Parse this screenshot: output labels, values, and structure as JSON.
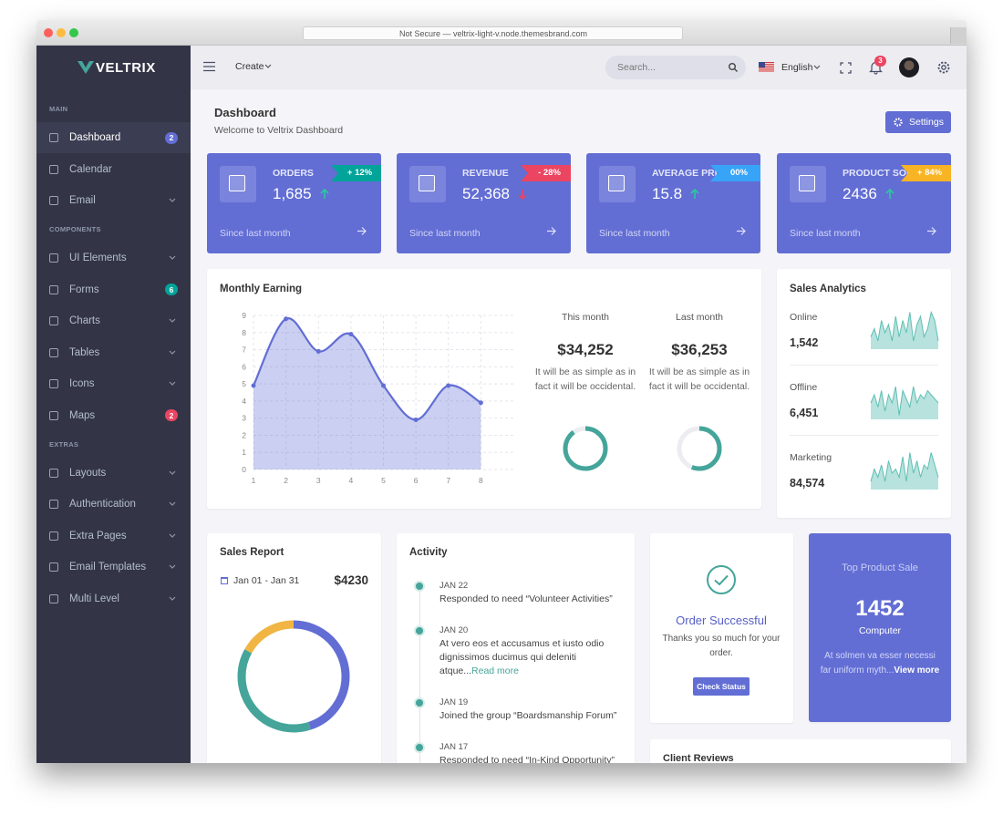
{
  "browser": {
    "url": "Not Secure — veltrix-light-v.node.themesbrand.com"
  },
  "sidebar": {
    "brand": "VELTRIX",
    "sections": [
      {
        "title": "MAIN",
        "items": [
          {
            "label": "Dashboard",
            "badge": 2,
            "badge_color": "#626ed4",
            "active": true
          },
          {
            "label": "Calendar"
          },
          {
            "label": "Email",
            "submenu": true
          }
        ]
      },
      {
        "title": "COMPONENTS",
        "items": [
          {
            "label": "UI Elements",
            "submenu": true
          },
          {
            "label": "Forms",
            "badge": 6,
            "badge_color": "#02a499"
          },
          {
            "label": "Charts",
            "submenu": true
          },
          {
            "label": "Tables",
            "submenu": true
          },
          {
            "label": "Icons",
            "submenu": true
          },
          {
            "label": "Maps",
            "badge": 2,
            "badge_color": "#ec4561"
          }
        ]
      },
      {
        "title": "EXTRAS",
        "items": [
          {
            "label": "Layouts",
            "submenu": true
          },
          {
            "label": "Authentication",
            "submenu": true
          },
          {
            "label": "Extra Pages",
            "submenu": true
          },
          {
            "label": "Email Templates",
            "submenu": true
          },
          {
            "label": "Multi Level",
            "submenu": true
          }
        ]
      }
    ]
  },
  "topbar": {
    "create": "Create",
    "search_placeholder": "Search...",
    "language": "English",
    "notifications": 3
  },
  "page_header": {
    "title": "Dashboard",
    "subtitle": "Welcome to Veltrix Dashboard",
    "button": "Settings"
  },
  "stats": [
    {
      "title": "ORDERS",
      "value": "1,685",
      "change": "+ 12%",
      "change_color": "#02a499",
      "trend": "up",
      "footer": "Since last month"
    },
    {
      "title": "REVENUE",
      "value": "52,368",
      "change": "- 28%",
      "change_color": "#ec4561",
      "trend": "down",
      "footer": "Since last month"
    },
    {
      "title": "AVERAGE PRICE",
      "value": 15.8,
      "change": "00%",
      "change_color": "#38a4f8",
      "trend": "up",
      "footer": "Since last month"
    },
    {
      "title": "PRODUCT SOLD",
      "value": 2436,
      "change": "+ 84%",
      "change_color": "#f8b425",
      "trend": "up",
      "footer": "Since last month"
    }
  ],
  "monthly_earning": {
    "title": "Monthly Earning",
    "chart": {
      "type": "area",
      "x": [
        1,
        2,
        3,
        4,
        5,
        6,
        7,
        8
      ],
      "values": [
        4.9,
        8.8,
        6.9,
        7.9,
        4.9,
        2.9,
        4.9,
        3.9
      ],
      "xlim": [
        1,
        9
      ],
      "xticks": [
        1,
        2,
        3,
        4,
        5,
        6,
        7,
        8
      ],
      "ylim": [
        0,
        9
      ],
      "yticks": [
        0,
        1,
        2,
        3,
        4,
        5,
        6,
        7,
        8,
        9
      ],
      "color": "#626ed4",
      "grid": true
    },
    "periods": [
      {
        "label": "This month",
        "amount": "$34,252",
        "text": "It will be as simple as in fact it will be occidental.",
        "progress": 90,
        "color": "#45a59a"
      },
      {
        "label": "Last month",
        "amount": "$36,253",
        "text": "It will be as simple as in fact it will be occidental.",
        "progress": 56,
        "color": "#45a59a"
      }
    ]
  },
  "sales_analytics": {
    "title": "Sales Analytics",
    "ylim": [
      0,
      10
    ],
    "color": "#5fbfb3",
    "items": [
      {
        "label": "Online",
        "value": "1,542",
        "sparkline": [
          3,
          5,
          2,
          7,
          4,
          6,
          2,
          8,
          3,
          7,
          4,
          9,
          2,
          6,
          8,
          3,
          5,
          9,
          7,
          2
        ]
      },
      {
        "label": "Offline",
        "value": "6,451",
        "sparkline": [
          4,
          6,
          3,
          7,
          2,
          6,
          4,
          8,
          1,
          7,
          5,
          3,
          8,
          4,
          6,
          5,
          7,
          6,
          5,
          4
        ]
      },
      {
        "label": "Marketing",
        "value": "84,574",
        "sparkline": [
          2,
          5,
          3,
          6,
          2,
          7,
          4,
          5,
          3,
          8,
          2,
          9,
          4,
          7,
          3,
          6,
          5,
          9,
          6,
          3
        ]
      }
    ]
  },
  "sales_report": {
    "title": "Sales Report",
    "range": "Jan 01 - Jan 31",
    "total": "$4230",
    "donut": {
      "type": "donut",
      "values": [
        45,
        38,
        17
      ],
      "colors": [
        "#626ed4",
        "#45a59a",
        "#f0b542"
      ]
    }
  },
  "activity": {
    "title": "Activity",
    "items": [
      {
        "date": "JAN 22",
        "text": "Responded to need “Volunteer Activities”"
      },
      {
        "date": "JAN 20",
        "text": "At vero eos et accusamus et iusto odio dignissimos ducimus qui deleniti atque...",
        "link": "Read more"
      },
      {
        "date": "JAN 19",
        "text": "Joined the group “Boardsmanship Forum”"
      },
      {
        "date": "JAN 17",
        "text": "Responded to need “In-Kind Opportunity”"
      }
    ]
  },
  "order": {
    "title": "Order Successful",
    "text": "Thanks you so much for your order.",
    "button": "Check Status"
  },
  "top_product": {
    "title": "Top Product Sale",
    "value": 1452,
    "name": "Computer",
    "text": "At solmen va esser necessi far uniform myth...",
    "link": "View more"
  },
  "client_reviews": {
    "title": "Client Reviews"
  }
}
